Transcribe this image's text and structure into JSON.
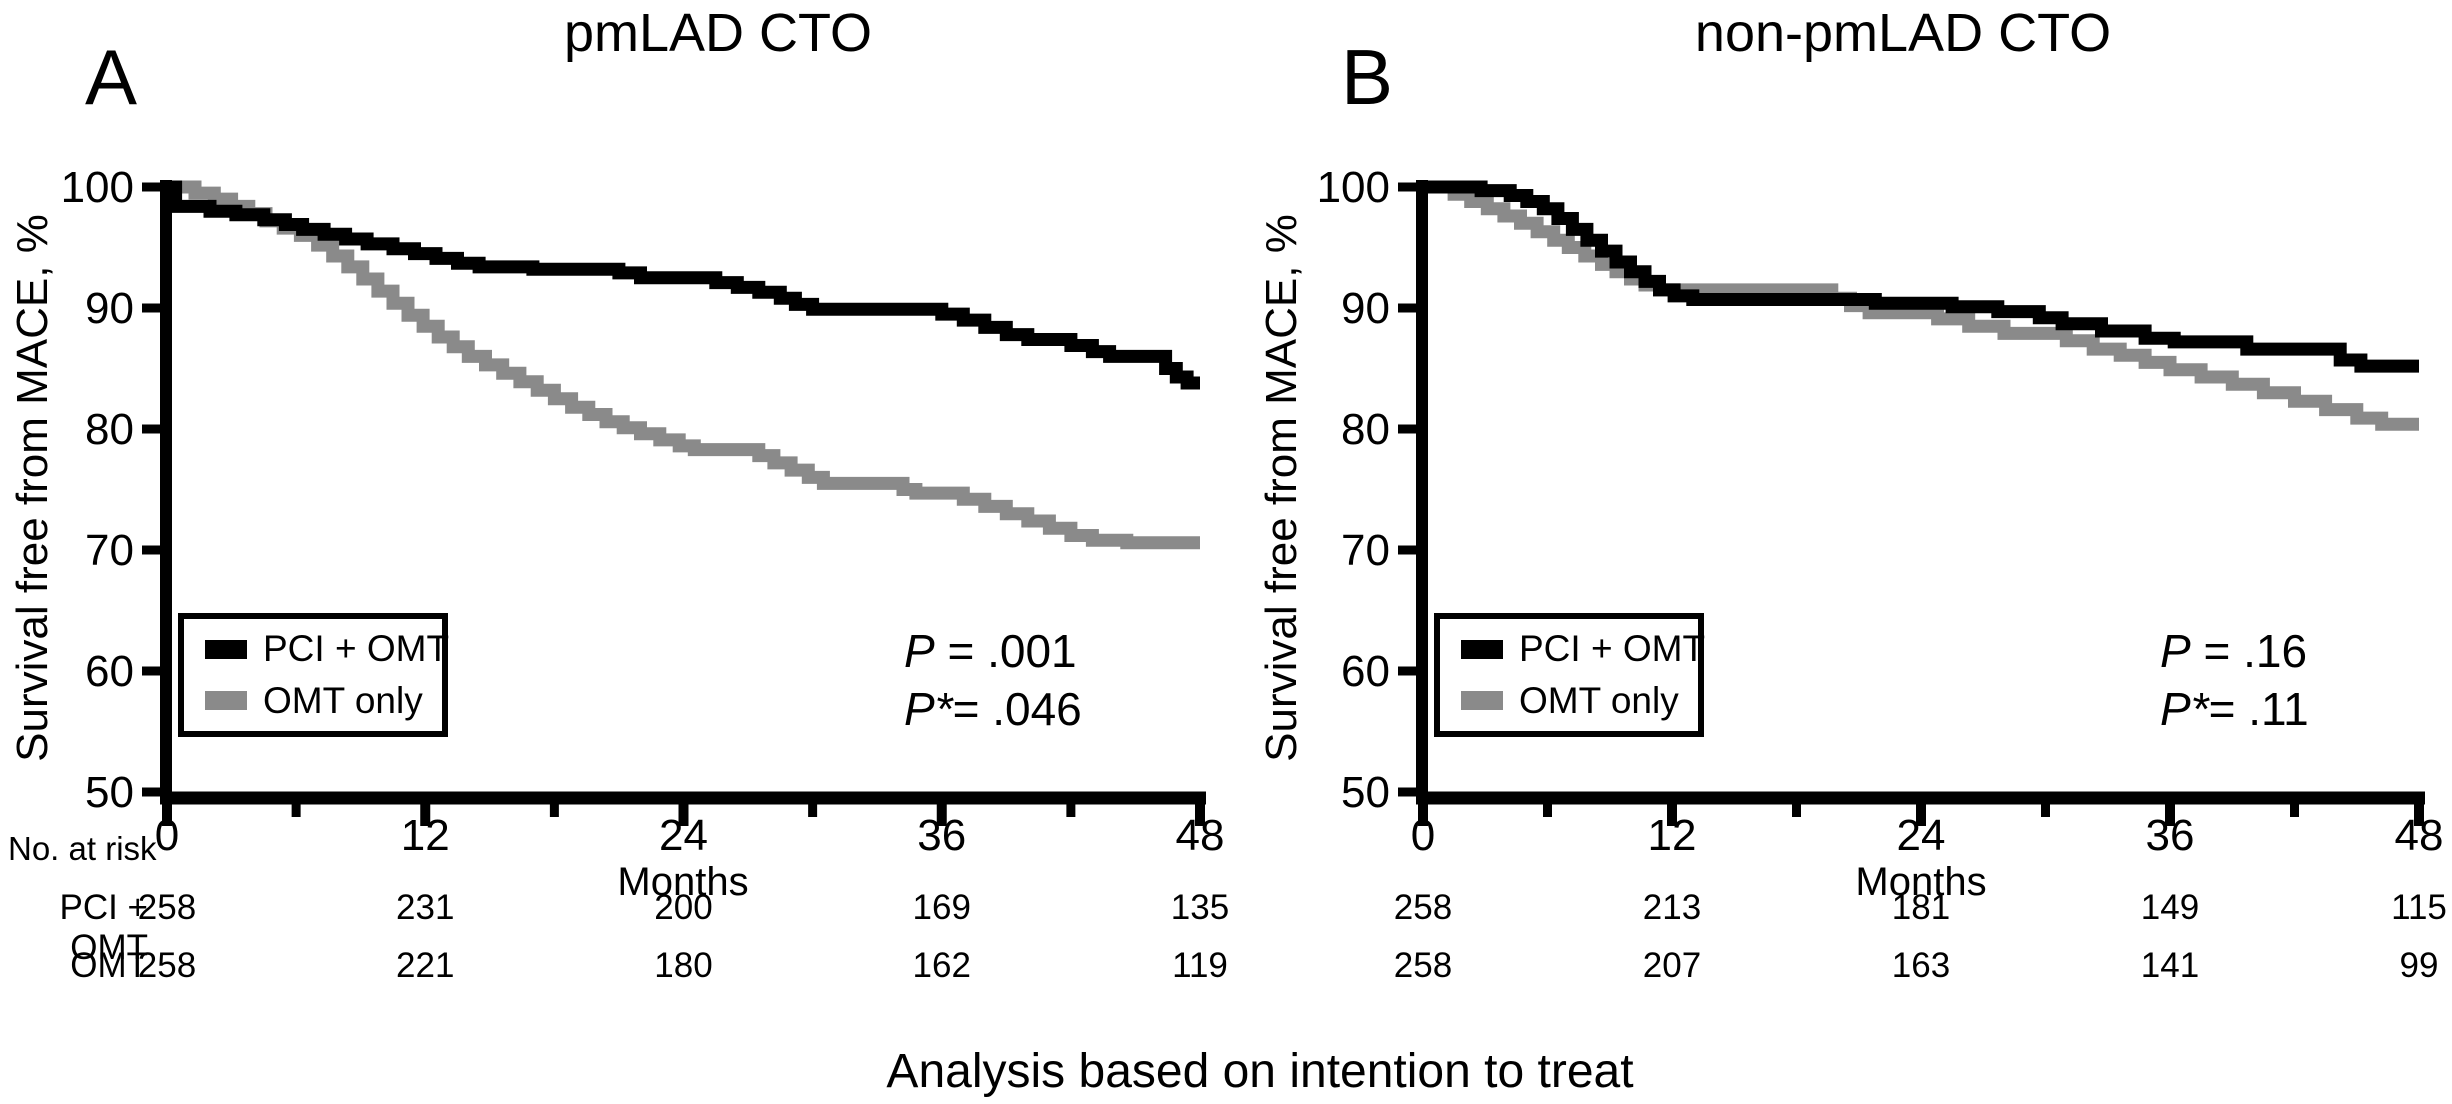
{
  "figure": {
    "caption": "Analysis based on intention to treat",
    "colors": {
      "pci_omt": "#000000",
      "omt_only": "#8a8a8a"
    },
    "legend": [
      {
        "key": "pci_omt",
        "label": "PCI + OMT"
      },
      {
        "key": "omt_only",
        "label": "OMT only"
      }
    ]
  },
  "panels": [
    {
      "letter": "A",
      "title": "pmLAD CTO",
      "ylabel": "Survival free from MACE, %",
      "xlabel": "Months",
      "pvalues": [
        {
          "prefix": "P",
          "rest": " = .001"
        },
        {
          "prefix": "P*",
          "rest": "= .046"
        }
      ],
      "risk_header": "No. at risk",
      "risk_rows": [
        {
          "label": "PCI + OMT"
        },
        {
          "label": "OMT"
        }
      ]
    },
    {
      "letter": "B",
      "title": "non-pmLAD CTO",
      "ylabel": "Survival free from MACE, %",
      "xlabel": "Months",
      "pvalues": [
        {
          "prefix": "P",
          "rest": " = .16"
        },
        {
          "prefix": "P*",
          "rest": "= .11"
        }
      ],
      "risk_header": "",
      "risk_rows": [
        {
          "label": ""
        },
        {
          "label": ""
        }
      ]
    }
  ],
  "chart_data": [
    {
      "type": "line",
      "subtype": "kaplan-meier-step",
      "title": "pmLAD CTO",
      "xlabel": "Months",
      "ylabel": "Survival free from MACE, %",
      "xlim": [
        0,
        48
      ],
      "ylim": [
        50,
        100
      ],
      "xticks": [
        0,
        12,
        24,
        36,
        48
      ],
      "minor_xticks": [
        6,
        18,
        30,
        42
      ],
      "yticks": [
        50,
        60,
        70,
        80,
        90,
        100
      ],
      "grid": false,
      "legend_position": "lower-left",
      "annotations": [
        "P = .001",
        "P* = .046"
      ],
      "series": [
        {
          "name": "PCI + OMT",
          "color": "#000000",
          "points": [
            [
              0,
              100
            ],
            [
              0.4,
              98.4
            ],
            [
              2,
              98
            ],
            [
              3.2,
              97.7
            ],
            [
              4.5,
              97.3
            ],
            [
              5.5,
              96.9
            ],
            [
              6.3,
              96.5
            ],
            [
              7.3,
              96.1
            ],
            [
              8.3,
              95.7
            ],
            [
              9.3,
              95.3
            ],
            [
              10.5,
              94.9
            ],
            [
              11.5,
              94.5
            ],
            [
              12.5,
              94.1
            ],
            [
              13.5,
              93.7
            ],
            [
              14.5,
              93.4
            ],
            [
              17,
              93.2
            ],
            [
              21,
              92.9
            ],
            [
              22,
              92.5
            ],
            [
              25.5,
              92.1
            ],
            [
              26.5,
              91.7
            ],
            [
              27.5,
              91.3
            ],
            [
              28.5,
              90.8
            ],
            [
              29.2,
              90.3
            ],
            [
              30,
              89.9
            ],
            [
              36,
              89.5
            ],
            [
              37,
              89
            ],
            [
              38,
              88.4
            ],
            [
              39,
              87.8
            ],
            [
              40,
              87.4
            ],
            [
              42,
              86.9
            ],
            [
              43,
              86.4
            ],
            [
              43.8,
              86
            ],
            [
              46.4,
              85
            ],
            [
              46.9,
              84.3
            ],
            [
              47.4,
              83.8
            ],
            [
              48,
              83.8
            ]
          ]
        },
        {
          "name": "OMT only",
          "color": "#8a8a8a",
          "points": [
            [
              0,
              100
            ],
            [
              1.3,
              99.5
            ],
            [
              2.2,
              99
            ],
            [
              3,
              98.4
            ],
            [
              3.8,
              97.8
            ],
            [
              4.6,
              97.2
            ],
            [
              5.4,
              96.6
            ],
            [
              6.2,
              96
            ],
            [
              7,
              95.2
            ],
            [
              7.7,
              94.3
            ],
            [
              8.4,
              93.4
            ],
            [
              9.1,
              92.4
            ],
            [
              9.8,
              91.4
            ],
            [
              10.5,
              90.4
            ],
            [
              11.2,
              89.4
            ],
            [
              11.9,
              88.5
            ],
            [
              12.6,
              87.6
            ],
            [
              13.3,
              86.8
            ],
            [
              14,
              86
            ],
            [
              14.8,
              85.3
            ],
            [
              15.6,
              84.6
            ],
            [
              16.4,
              83.9
            ],
            [
              17.2,
              83.2
            ],
            [
              18,
              82.5
            ],
            [
              18.8,
              81.8
            ],
            [
              19.6,
              81.2
            ],
            [
              20.4,
              80.6
            ],
            [
              21.2,
              80.1
            ],
            [
              22,
              79.6
            ],
            [
              22.9,
              79.1
            ],
            [
              23.8,
              78.6
            ],
            [
              24.5,
              78.3
            ],
            [
              27.5,
              77.8
            ],
            [
              28.2,
              77.2
            ],
            [
              29,
              76.6
            ],
            [
              29.8,
              76
            ],
            [
              30.5,
              75.5
            ],
            [
              34.2,
              75
            ],
            [
              34.8,
              74.7
            ],
            [
              37,
              74.2
            ],
            [
              38,
              73.6
            ],
            [
              39,
              73
            ],
            [
              40,
              72.4
            ],
            [
              41,
              71.8
            ],
            [
              42,
              71.2
            ],
            [
              43,
              70.8
            ],
            [
              44.6,
              70.6
            ],
            [
              48,
              70.6
            ]
          ]
        }
      ],
      "no_at_risk": {
        "times": [
          0,
          12,
          24,
          36,
          48
        ],
        "rows": [
          {
            "name": "PCI + OMT",
            "counts": [
              258,
              231,
              200,
              169,
              135
            ]
          },
          {
            "name": "OMT",
            "counts": [
              258,
              221,
              180,
              162,
              119
            ]
          }
        ]
      }
    },
    {
      "type": "line",
      "subtype": "kaplan-meier-step",
      "title": "non-pmLAD CTO",
      "xlabel": "Months",
      "ylabel": "Survival free from MACE, %",
      "xlim": [
        0,
        48
      ],
      "ylim": [
        50,
        100
      ],
      "xticks": [
        0,
        12,
        24,
        36,
        48
      ],
      "minor_xticks": [
        6,
        18,
        30,
        42
      ],
      "yticks": [
        50,
        60,
        70,
        80,
        90,
        100
      ],
      "grid": false,
      "legend_position": "lower-left",
      "annotations": [
        "P = .16",
        "P* = .11"
      ],
      "series": [
        {
          "name": "PCI + OMT",
          "color": "#000000",
          "points": [
            [
              0,
              100
            ],
            [
              2.8,
              99.7
            ],
            [
              4.2,
              99.3
            ],
            [
              5,
              98.8
            ],
            [
              5.8,
              98.2
            ],
            [
              6.5,
              97.4
            ],
            [
              7.2,
              96.5
            ],
            [
              7.9,
              95.6
            ],
            [
              8.6,
              94.7
            ],
            [
              9.3,
              93.8
            ],
            [
              10,
              93
            ],
            [
              10.7,
              92.2
            ],
            [
              11.4,
              91.5
            ],
            [
              12.1,
              91
            ],
            [
              13,
              90.7
            ],
            [
              21.8,
              90.4
            ],
            [
              25.5,
              90.1
            ],
            [
              27.7,
              89.7
            ],
            [
              29.7,
              89.2
            ],
            [
              30.8,
              88.7
            ],
            [
              32.7,
              88.1
            ],
            [
              34.8,
              87.5
            ],
            [
              36.2,
              87.2
            ],
            [
              39.7,
              86.6
            ],
            [
              44.2,
              85.7
            ],
            [
              45.2,
              85.2
            ],
            [
              48,
              85.2
            ]
          ]
        },
        {
          "name": "OMT only",
          "color": "#8a8a8a",
          "points": [
            [
              0,
              100
            ],
            [
              1.5,
              99.4
            ],
            [
              2.3,
              98.8
            ],
            [
              3.1,
              98.2
            ],
            [
              3.9,
              97.6
            ],
            [
              4.7,
              97
            ],
            [
              5.5,
              96.3
            ],
            [
              6.3,
              95.6
            ],
            [
              7,
              95
            ],
            [
              7.8,
              94.3
            ],
            [
              8.6,
              93.6
            ],
            [
              9.3,
              93
            ],
            [
              10,
              92.4
            ],
            [
              10.7,
              91.9
            ],
            [
              11.4,
              91.5
            ],
            [
              19.7,
              90.8
            ],
            [
              20.6,
              90.2
            ],
            [
              21.5,
              89.6
            ],
            [
              24.8,
              89.1
            ],
            [
              26.3,
              88.5
            ],
            [
              28,
              87.9
            ],
            [
              31,
              87.3
            ],
            [
              32.3,
              86.6
            ],
            [
              33.6,
              86.1
            ],
            [
              34.8,
              85.5
            ],
            [
              36,
              84.9
            ],
            [
              37.5,
              84.3
            ],
            [
              39,
              83.7
            ],
            [
              40.5,
              83
            ],
            [
              42,
              82.3
            ],
            [
              43.5,
              81.6
            ],
            [
              45,
              80.9
            ],
            [
              46.2,
              80.4
            ],
            [
              48,
              80.4
            ]
          ]
        }
      ],
      "no_at_risk": {
        "times": [
          0,
          12,
          24,
          36,
          48
        ],
        "rows": [
          {
            "name": "PCI + OMT",
            "counts": [
              258,
              213,
              181,
              149,
              115
            ]
          },
          {
            "name": "OMT",
            "counts": [
              258,
              207,
              163,
              141,
              99
            ]
          }
        ]
      }
    }
  ]
}
